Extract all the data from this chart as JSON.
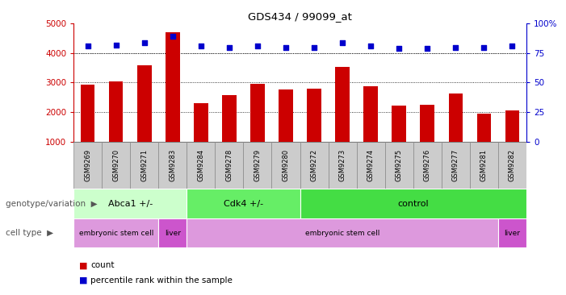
{
  "title": "GDS434 / 99099_at",
  "samples": [
    "GSM9269",
    "GSM9270",
    "GSM9271",
    "GSM9283",
    "GSM9284",
    "GSM9278",
    "GSM9279",
    "GSM9280",
    "GSM9272",
    "GSM9273",
    "GSM9274",
    "GSM9275",
    "GSM9276",
    "GSM9277",
    "GSM9281",
    "GSM9282"
  ],
  "counts": [
    2920,
    3050,
    3600,
    4700,
    2300,
    2580,
    2960,
    2760,
    2790,
    3540,
    2880,
    2230,
    2250,
    2630,
    1940,
    2060
  ],
  "percentiles": [
    81,
    82,
    84,
    89,
    81,
    80,
    81,
    80,
    80,
    84,
    81,
    79,
    79,
    80,
    80,
    81
  ],
  "bar_color": "#cc0000",
  "dot_color": "#0000cc",
  "ylim_left": [
    1000,
    5000
  ],
  "ylim_right": [
    0,
    100
  ],
  "yticks_left": [
    1000,
    2000,
    3000,
    4000,
    5000
  ],
  "yticks_right": [
    0,
    25,
    50,
    75,
    100
  ],
  "grid_values": [
    2000,
    3000,
    4000
  ],
  "genotype_groups": [
    {
      "label": "Abca1 +/-",
      "start": 0,
      "end": 4,
      "color": "#ccffcc"
    },
    {
      "label": "Cdk4 +/-",
      "start": 4,
      "end": 8,
      "color": "#66ee66"
    },
    {
      "label": "control",
      "start": 8,
      "end": 16,
      "color": "#44dd44"
    }
  ],
  "celltype_groups": [
    {
      "label": "embryonic stem cell",
      "start": 0,
      "end": 3,
      "color": "#dd99dd"
    },
    {
      "label": "liver",
      "start": 3,
      "end": 4,
      "color": "#cc55cc"
    },
    {
      "label": "embryonic stem cell",
      "start": 4,
      "end": 15,
      "color": "#dd99dd"
    },
    {
      "label": "liver",
      "start": 15,
      "end": 16,
      "color": "#cc55cc"
    }
  ],
  "genotype_label": "genotype/variation",
  "celltype_label": "cell type",
  "legend_count_label": "count",
  "legend_pct_label": "percentile rank within the sample",
  "background_color": "#ffffff",
  "xticklabel_bg": "#cccccc",
  "xticklabel_border": "#888888"
}
